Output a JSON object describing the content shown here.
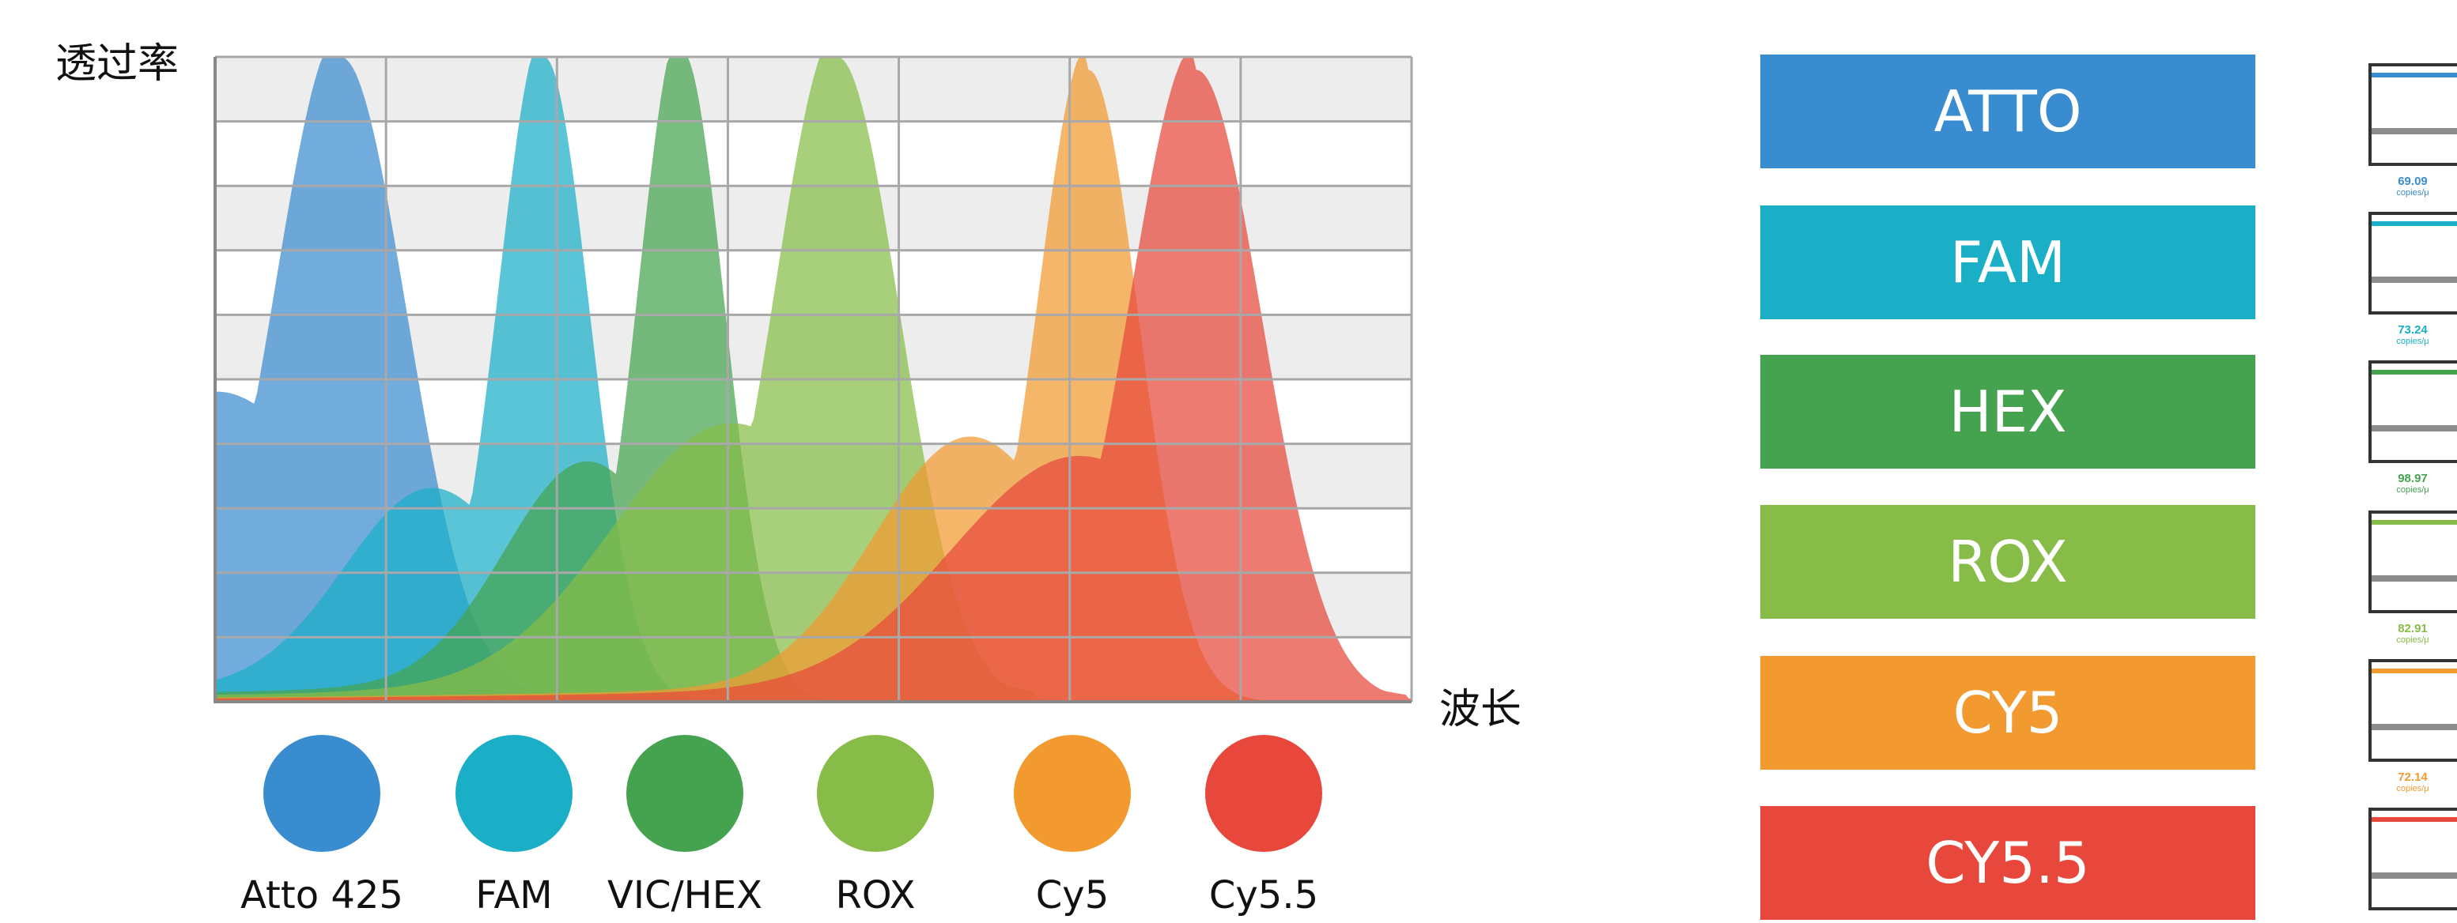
{
  "chart_data": {
    "type": "area",
    "title": "",
    "ylabel": "透过率",
    "xlabel": "波长",
    "grid": true,
    "grid_rows": 10,
    "grid_cols": 7,
    "xlim": [
      0,
      100
    ],
    "ylim": [
      0,
      100
    ],
    "series": [
      {
        "name": "Atto 425",
        "color": "#3a8cd0",
        "peak_x": 10.5,
        "peak_y": 100,
        "shoulder_x": 0,
        "shoulder_y": 45,
        "width": 5.5
      },
      {
        "name": "FAM",
        "color": "#1aafc7",
        "peak_x": 27.5,
        "peak_y": 100,
        "shoulder_x": 18,
        "shoulder_y": 30,
        "width": 3.8
      },
      {
        "name": "VIC/HEX",
        "color": "#45a34f",
        "peak_x": 39,
        "peak_y": 101,
        "shoulder_x": 31,
        "shoulder_y": 34,
        "width": 3.6
      },
      {
        "name": "ROX",
        "color": "#86bc47",
        "peak_x": 52,
        "peak_y": 100,
        "shoulder_x": 43,
        "shoulder_y": 40,
        "width": 5.2
      },
      {
        "name": "Cy5",
        "color": "#f29a30",
        "peak_x": 73,
        "peak_y": 98,
        "shoulder_x": 63,
        "shoulder_y": 38,
        "width": 4.2
      },
      {
        "name": "Cy5.5",
        "color": "#e8483b",
        "peak_x": 82,
        "peak_y": 98,
        "shoulder_x": 72,
        "shoulder_y": 35,
        "width": 5.5
      }
    ]
  },
  "dyes": [
    {
      "label": "Atto 425",
      "color": "#3a8cd0"
    },
    {
      "label": "FAM",
      "color": "#1aafc7"
    },
    {
      "label": "VIC/HEX",
      "color": "#45a34f"
    },
    {
      "label": "ROX",
      "color": "#86bc47"
    },
    {
      "label": "Cy5",
      "color": "#f29a30"
    },
    {
      "label": "Cy5.5",
      "color": "#e8483b"
    }
  ],
  "channels": [
    {
      "label": "ATTO",
      "color": "#3a8cd0"
    },
    {
      "label": "FAM",
      "color": "#1aafc7"
    },
    {
      "label": "HEX",
      "color": "#45a34f"
    },
    {
      "label": "ROX",
      "color": "#86bc47"
    },
    {
      "label": "CY5",
      "color": "#f29a30"
    },
    {
      "label": "CY5.5",
      "color": "#e8483b"
    }
  ],
  "mini_panels": [
    {
      "color": "#3a8cd0",
      "value": "69.09",
      "unit": "copies/μ"
    },
    {
      "color": "#1aafc7",
      "value": "73.24",
      "unit": "copies/μ"
    },
    {
      "color": "#45a34f",
      "value": "98.97",
      "unit": "copies/μ"
    },
    {
      "color": "#86bc47",
      "value": "82.91",
      "unit": "copies/μ"
    },
    {
      "color": "#f29a30",
      "value": "72.14",
      "unit": "copies/μ"
    },
    {
      "color": "#e8483b",
      "value": "",
      "unit": ""
    }
  ]
}
